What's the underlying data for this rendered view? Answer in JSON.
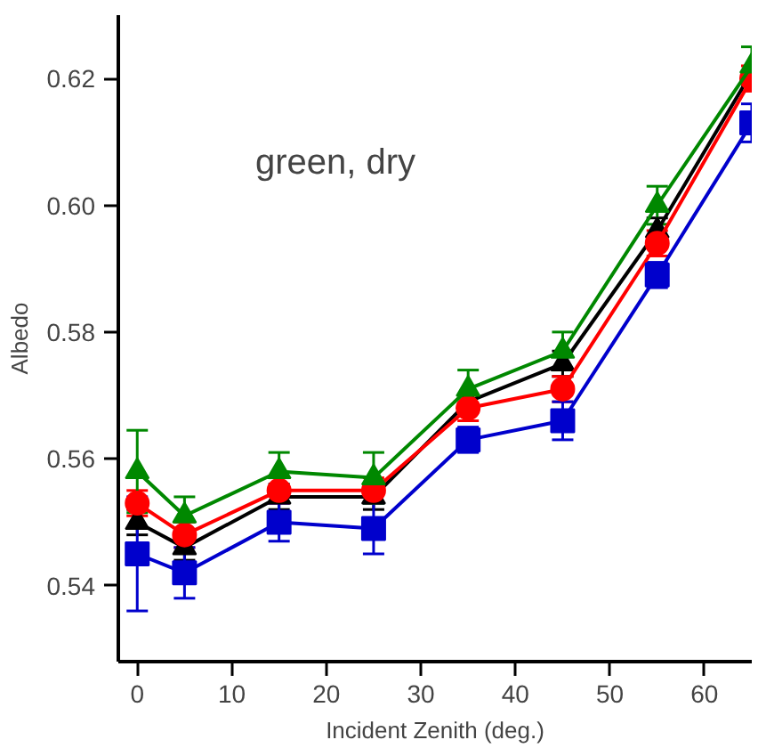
{
  "chart_data": {
    "type": "line",
    "xlabel": "Incident Zenith (deg.)",
    "ylabel": "Albedo",
    "annotations": [
      "green, dry"
    ],
    "x": [
      0,
      5,
      15,
      25,
      35,
      45,
      55,
      65
    ],
    "xlim": [
      -2,
      65
    ],
    "xticks": [
      0,
      10,
      20,
      30,
      40,
      50,
      60
    ],
    "ylim": [
      0.528,
      0.63
    ],
    "yticks": [
      0.54,
      0.56,
      0.58,
      {
        "value": 0.6,
        "label": "0.60"
      },
      0.62
    ],
    "grid": false,
    "series": [
      {
        "color": "#000000",
        "marker": "triangle",
        "values": [
          0.55,
          0.546,
          0.554,
          0.554,
          0.569,
          0.575,
          0.596,
          0.621
        ],
        "errors": [
          0.002,
          0.002,
          0.002,
          0.002,
          null,
          0.002,
          0.002,
          null
        ]
      },
      {
        "color": "#ff0000",
        "marker": "circle",
        "values": [
          0.553,
          0.548,
          0.555,
          0.555,
          0.568,
          0.571,
          0.594,
          0.62
        ],
        "errors": [
          0.002,
          0.002,
          0.002,
          0.002,
          0.002,
          0.002,
          0.002,
          0.002
        ]
      },
      {
        "color": "#0000cc",
        "marker": "square",
        "values": [
          0.545,
          0.542,
          0.55,
          0.549,
          0.563,
          0.566,
          0.589,
          0.613
        ],
        "errors": [
          0.009,
          0.004,
          0.003,
          0.004,
          0.002,
          0.003,
          0.002,
          0.003
        ]
      },
      {
        "color": "#008800",
        "marker": "triangle",
        "values": [
          0.558,
          0.551,
          0.558,
          0.557,
          0.571,
          0.577,
          0.6,
          0.622
        ],
        "errors": [
          0.0065,
          0.003,
          0.003,
          0.004,
          0.003,
          0.003,
          0.003,
          0.003
        ]
      }
    ]
  }
}
